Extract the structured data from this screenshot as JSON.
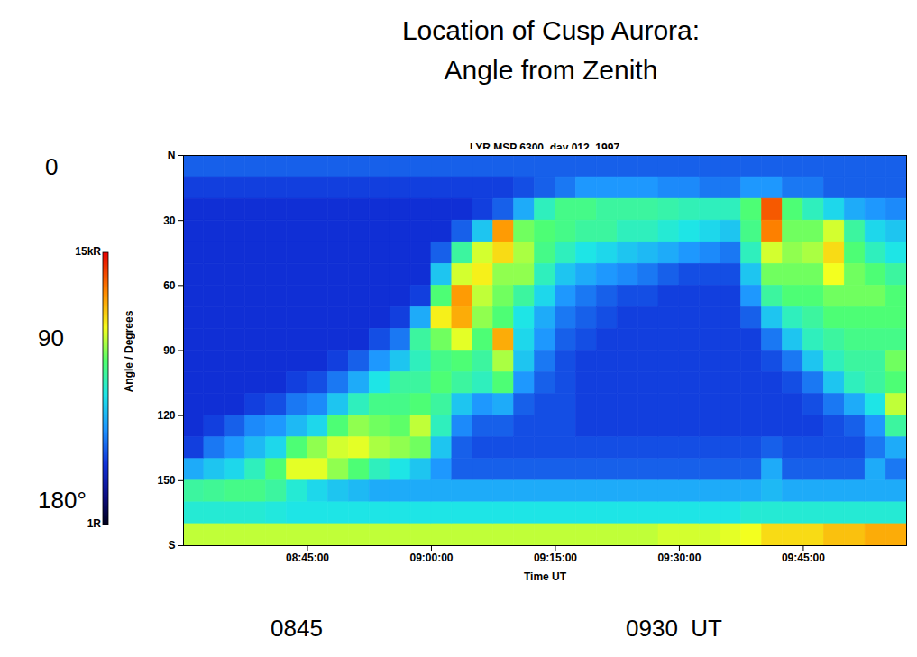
{
  "chart_data": {
    "type": "heatmap",
    "title": "Location of Cusp Aurora:\nAngle from Zenith",
    "subtitle": "LYR MSP 6300, day 012, 1997",
    "x_label": "Time UT",
    "y_label": "Angle / Degrees",
    "annotations": [
      "0",
      "90",
      "180°",
      "0845",
      "0930  UT"
    ],
    "xlim": [
      "08:30:00",
      "09:57:30"
    ],
    "xticks": [
      "08:45:00",
      "09:00:00",
      "09:15:00",
      "09:30:00",
      "09:45:00"
    ],
    "ylim": [
      0,
      180
    ],
    "yticks": [
      {
        "value": 0,
        "label": "N"
      },
      30,
      60,
      90,
      120,
      150,
      {
        "value": 180,
        "label": "S"
      }
    ],
    "colorbar": {
      "range": [
        1,
        15000
      ],
      "log": true,
      "ticks": [
        {
          "value": 15000,
          "label": "15kR"
        },
        {
          "value": 1,
          "label": "1R"
        }
      ]
    },
    "heatmap": {
      "x": [
        "08:30:00",
        "08:32:30",
        "08:35:00",
        "08:37:30",
        "08:40:00",
        "08:42:30",
        "08:45:00",
        "08:47:30",
        "08:50:00",
        "08:52:30",
        "08:55:00",
        "08:57:30",
        "09:00:00",
        "09:02:30",
        "09:05:00",
        "09:07:30",
        "09:10:00",
        "09:12:30",
        "09:15:00",
        "09:17:30",
        "09:20:00",
        "09:22:30",
        "09:25:00",
        "09:27:30",
        "09:30:00",
        "09:32:30",
        "09:35:00",
        "09:37:30",
        "09:40:00",
        "09:42:30",
        "09:45:00",
        "09:47:30",
        "09:50:00",
        "09:52:30",
        "09:55:00"
      ],
      "y": [
        0,
        10,
        20,
        30,
        40,
        50,
        60,
        70,
        80,
        90,
        100,
        110,
        120,
        130,
        140,
        150,
        160,
        170
      ],
      "values": [
        [
          15,
          10,
          8,
          8,
          8,
          8,
          8,
          8,
          8,
          8,
          8,
          8,
          8,
          10,
          40,
          200,
          120,
          700
        ],
        [
          15,
          10,
          8,
          8,
          8,
          8,
          8,
          8,
          8,
          8,
          8,
          8,
          10,
          20,
          60,
          220,
          120,
          700
        ],
        [
          15,
          10,
          8,
          8,
          8,
          8,
          8,
          8,
          8,
          8,
          8,
          8,
          15,
          30,
          80,
          250,
          120,
          700
        ],
        [
          15,
          10,
          8,
          8,
          8,
          8,
          8,
          8,
          8,
          8,
          8,
          10,
          25,
          50,
          150,
          250,
          120,
          700
        ],
        [
          15,
          10,
          8,
          8,
          8,
          8,
          8,
          8,
          8,
          8,
          8,
          12,
          30,
          80,
          300,
          200,
          110,
          700
        ],
        [
          15,
          10,
          8,
          8,
          8,
          8,
          8,
          8,
          8,
          8,
          10,
          20,
          50,
          300,
          900,
          120,
          100,
          700
        ],
        [
          15,
          10,
          8,
          8,
          8,
          8,
          8,
          8,
          8,
          8,
          12,
          25,
          80,
          500,
          900,
          80,
          100,
          700
        ],
        [
          15,
          10,
          8,
          8,
          8,
          8,
          8,
          8,
          8,
          10,
          20,
          60,
          300,
          800,
          500,
          60,
          100,
          700
        ],
        [
          15,
          10,
          8,
          8,
          8,
          8,
          8,
          8,
          8,
          15,
          40,
          150,
          500,
          900,
          300,
          50,
          100,
          700
        ],
        [
          15,
          10,
          8,
          8,
          8,
          8,
          8,
          8,
          12,
          30,
          100,
          250,
          400,
          600,
          150,
          40,
          100,
          700
        ],
        [
          15,
          10,
          8,
          8,
          8,
          8,
          8,
          10,
          20,
          60,
          200,
          250,
          350,
          500,
          100,
          40,
          100,
          700
        ],
        [
          15,
          10,
          8,
          8,
          8,
          8,
          10,
          40,
          200,
          150,
          200,
          300,
          700,
          400,
          60,
          40,
          100,
          700
        ],
        [
          15,
          10,
          8,
          8,
          15,
          60,
          300,
          1200,
          400,
          250,
          300,
          200,
          150,
          60,
          30,
          40,
          100,
          700
        ],
        [
          15,
          10,
          8,
          15,
          200,
          800,
          3000,
          2500,
          900,
          300,
          200,
          60,
          25,
          15,
          15,
          40,
          100,
          700
        ],
        [
          15,
          10,
          10,
          60,
          800,
          1200,
          700,
          500,
          300,
          200,
          150,
          30,
          15,
          12,
          15,
          40,
          100,
          700
        ],
        [
          15,
          10,
          15,
          3000,
          1500,
          500,
          400,
          300,
          2500,
          600,
          300,
          40,
          15,
          12,
          15,
          40,
          100,
          700
        ],
        [
          15,
          12,
          40,
          400,
          600,
          500,
          200,
          100,
          80,
          60,
          30,
          15,
          12,
          12,
          15,
          40,
          100,
          700
        ],
        [
          15,
          15,
          150,
          300,
          250,
          150,
          80,
          40,
          30,
          20,
          15,
          12,
          12,
          12,
          15,
          40,
          100,
          700
        ],
        [
          15,
          20,
          250,
          250,
          150,
          60,
          30,
          20,
          15,
          12,
          12,
          12,
          12,
          12,
          15,
          40,
          100,
          700
        ],
        [
          15,
          30,
          250,
          200,
          100,
          40,
          20,
          15,
          12,
          10,
          10,
          10,
          10,
          12,
          15,
          40,
          100,
          700
        ],
        [
          15,
          30,
          200,
          200,
          80,
          30,
          15,
          12,
          10,
          10,
          10,
          10,
          10,
          12,
          15,
          40,
          100,
          700
        ],
        [
          15,
          30,
          200,
          150,
          60,
          25,
          12,
          10,
          10,
          10,
          10,
          10,
          10,
          12,
          15,
          40,
          100,
          700
        ],
        [
          15,
          30,
          200,
          150,
          50,
          20,
          12,
          10,
          10,
          10,
          10,
          10,
          10,
          12,
          15,
          40,
          100,
          700
        ],
        [
          15,
          25,
          180,
          120,
          40,
          15,
          10,
          10,
          10,
          10,
          10,
          10,
          10,
          12,
          15,
          40,
          100,
          800
        ],
        [
          15,
          25,
          160,
          100,
          30,
          12,
          10,
          10,
          10,
          10,
          10,
          10,
          10,
          12,
          15,
          40,
          100,
          800
        ],
        [
          15,
          20,
          150,
          80,
          25,
          12,
          10,
          10,
          10,
          10,
          10,
          10,
          10,
          12,
          15,
          40,
          100,
          800
        ],
        [
          15,
          20,
          150,
          60,
          20,
          12,
          10,
          10,
          10,
          10,
          10,
          10,
          10,
          12,
          15,
          40,
          100,
          900
        ],
        [
          15,
          30,
          300,
          250,
          150,
          60,
          30,
          15,
          10,
          10,
          10,
          10,
          10,
          12,
          15,
          40,
          120,
          1000
        ],
        [
          15,
          30,
          6000,
          4000,
          800,
          400,
          200,
          60,
          20,
          12,
          10,
          10,
          10,
          15,
          40,
          50,
          120,
          1500
        ],
        [
          15,
          20,
          300,
          400,
          500,
          400,
          300,
          150,
          60,
          20,
          12,
          10,
          10,
          12,
          15,
          40,
          120,
          1500
        ],
        [
          15,
          20,
          150,
          400,
          600,
          400,
          300,
          200,
          150,
          60,
          20,
          12,
          10,
          12,
          15,
          40,
          120,
          1500
        ],
        [
          15,
          15,
          80,
          800,
          1500,
          1000,
          400,
          300,
          200,
          150,
          60,
          20,
          12,
          12,
          15,
          40,
          120,
          2000
        ],
        [
          15,
          15,
          40,
          200,
          300,
          400,
          400,
          300,
          250,
          200,
          150,
          40,
          15,
          12,
          15,
          40,
          120,
          2000
        ],
        [
          15,
          15,
          30,
          80,
          150,
          300,
          400,
          300,
          250,
          200,
          200,
          100,
          30,
          20,
          40,
          40,
          120,
          2500
        ],
        [
          15,
          15,
          25,
          60,
          100,
          200,
          300,
          300,
          250,
          400,
          300,
          700,
          200,
          40,
          20,
          40,
          120,
          2500
        ]
      ]
    }
  }
}
